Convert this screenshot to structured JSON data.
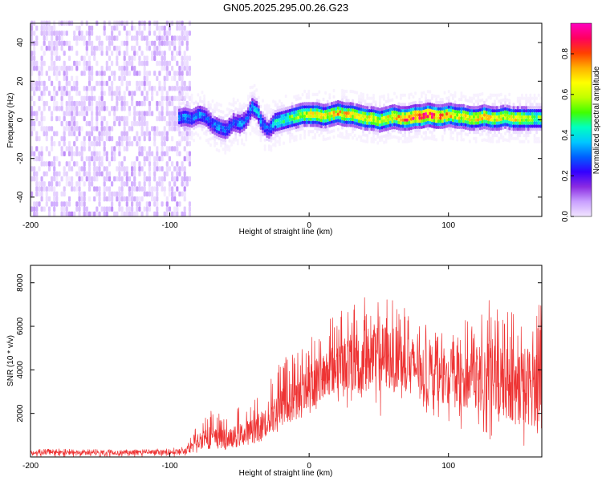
{
  "title": "GN05.2025.295.00.26.G23",
  "chart_data": [
    {
      "type": "heatmap",
      "name": "spectrogram",
      "xlabel": "Height of straight line (km)",
      "ylabel": "Frequency (Hz)",
      "xlim": [
        -200,
        167
      ],
      "ylim": [
        -50,
        50
      ],
      "xticks": [
        -200,
        -100,
        0,
        100
      ],
      "yticks": [
        -40,
        -20,
        0,
        20,
        40
      ],
      "xtick_labels": [
        "-200",
        "-100",
        "0",
        "100"
      ],
      "ytick_labels": [
        "-40",
        "-20",
        "0",
        "20",
        "40"
      ],
      "colorbar": {
        "label": "Normalized spectral amplitude",
        "range": [
          0.0,
          0.95
        ],
        "ticks": [
          0.0,
          0.2,
          0.4,
          0.6,
          0.8
        ],
        "tick_labels": [
          "0.0",
          "0.2",
          "0.4",
          "0.6",
          "0.8"
        ],
        "colors": [
          "#f2e6ff",
          "#c9a0ff",
          "#8a2be2",
          "#3300ff",
          "#0060ff",
          "#00c8ff",
          "#00ffc0",
          "#40ff00",
          "#c0ff00",
          "#ffff00",
          "#ffb000",
          "#ff4000",
          "#ff0060",
          "#ff00c0"
        ]
      },
      "noise_region": {
        "x_range": [
          -200,
          -88
        ],
        "typical_amplitude": 0.05
      },
      "signal_track": {
        "description": "Doppler frequency centroid of the main signal",
        "x": [
          -95,
          -90,
          -85,
          -80,
          -75,
          -70,
          -65,
          -60,
          -55,
          -50,
          -45,
          -42,
          -38,
          -35,
          -30,
          -25,
          -20,
          -15,
          -10,
          -5,
          0,
          5,
          10,
          15,
          20,
          25,
          30,
          35,
          40,
          45,
          50,
          55,
          60,
          65,
          70,
          75,
          80,
          85,
          90,
          95,
          100,
          105,
          110,
          115,
          120,
          125,
          130,
          135,
          140,
          145,
          150,
          155,
          160,
          165
        ],
        "frequency": [
          0,
          1,
          0,
          2,
          1,
          -3,
          -5,
          -6,
          -2,
          -3,
          0,
          6,
          4,
          -2,
          -6,
          -2,
          -1,
          0,
          1,
          2,
          2,
          2,
          1,
          2,
          3,
          2,
          2,
          1,
          0,
          0,
          -1,
          0,
          1,
          0,
          0,
          1,
          1,
          2,
          1,
          1,
          2,
          1,
          1,
          0,
          0,
          1,
          0,
          0,
          1,
          0,
          0,
          0,
          0,
          0
        ],
        "amplitude": [
          0.3,
          0.35,
          0.3,
          0.35,
          0.3,
          0.3,
          0.35,
          0.3,
          0.3,
          0.35,
          0.3,
          0.35,
          0.4,
          0.35,
          0.3,
          0.45,
          0.5,
          0.55,
          0.6,
          0.65,
          0.7,
          0.7,
          0.7,
          0.7,
          0.75,
          0.75,
          0.7,
          0.7,
          0.7,
          0.7,
          0.65,
          0.7,
          0.75,
          0.8,
          0.85,
          0.9,
          0.9,
          0.9,
          0.85,
          0.8,
          0.75,
          0.7,
          0.7,
          0.7,
          0.7,
          0.75,
          0.7,
          0.7,
          0.65,
          0.7,
          0.7,
          0.65,
          0.6,
          0.55
        ]
      }
    },
    {
      "type": "line",
      "name": "snr",
      "xlabel": "Height of straight line (km)",
      "ylabel": "SNR (10 * v/v)",
      "xlim": [
        -200,
        167
      ],
      "ylim": [
        0,
        8800
      ],
      "xticks": [
        -200,
        -100,
        0,
        100
      ],
      "yticks": [
        2000,
        4000,
        6000,
        8000
      ],
      "xtick_labels": [
        "-200",
        "-100",
        "0",
        "100"
      ],
      "ytick_labels": [
        "2000",
        "4000",
        "6000",
        "8000"
      ],
      "color": "#ee3333",
      "series": [
        {
          "name": "SNR",
          "envelope_x": [
            -200,
            -180,
            -160,
            -140,
            -120,
            -100,
            -90,
            -85,
            -80,
            -75,
            -70,
            -65,
            -60,
            -55,
            -50,
            -45,
            -40,
            -35,
            -30,
            -25,
            -20,
            -15,
            -10,
            -5,
            0,
            5,
            10,
            15,
            20,
            25,
            30,
            35,
            40,
            45,
            50,
            55,
            60,
            65,
            70,
            75,
            80,
            85,
            90,
            95,
            100,
            105,
            110,
            115,
            120,
            125,
            130,
            135,
            140,
            145,
            150,
            155,
            160,
            165
          ],
          "envelope_low": [
            0,
            0,
            0,
            0,
            0,
            0,
            0,
            100,
            200,
            300,
            300,
            400,
            300,
            400,
            400,
            500,
            600,
            700,
            800,
            1000,
            1200,
            1300,
            1500,
            1600,
            1800,
            2000,
            2200,
            2300,
            2400,
            2300,
            2200,
            2000,
            2000,
            1800,
            1600,
            1700,
            1800,
            1900,
            2000,
            2000,
            2100,
            2000,
            1900,
            1800,
            1600,
            1400,
            1200,
            1000,
            900,
            800,
            700,
            600,
            500,
            400,
            300,
            300,
            200,
            200
          ],
          "envelope_mid": [
            200,
            200,
            200,
            200,
            200,
            220,
            250,
            400,
            700,
            900,
            900,
            800,
            800,
            900,
            1000,
            1100,
            1200,
            1400,
            1700,
            2000,
            2300,
            2400,
            2600,
            2800,
            3200,
            3500,
            3800,
            4000,
            4200,
            4300,
            4300,
            4400,
            4500,
            4500,
            4600,
            4600,
            4500,
            4500,
            4400,
            4200,
            4000,
            3800,
            3700,
            3600,
            3500,
            3500,
            3500,
            3600,
            3700,
            3700,
            3700,
            3600,
            3500,
            3400,
            3300,
            3300,
            3300,
            3200
          ],
          "envelope_high": [
            350,
            380,
            350,
            360,
            350,
            400,
            500,
            900,
            1600,
            2100,
            2200,
            2000,
            2000,
            2100,
            2300,
            2500,
            2700,
            3200,
            3700,
            4200,
            4600,
            4800,
            4900,
            5200,
            5600,
            6000,
            6200,
            6500,
            6600,
            6800,
            7000,
            7200,
            7400,
            7500,
            7400,
            7300,
            7200,
            7100,
            6900,
            6600,
            6300,
            6000,
            5800,
            5700,
            5700,
            5900,
            6200,
            6500,
            6700,
            7000,
            7300,
            7000,
            6900,
            6800,
            6600,
            6800,
            7000,
            7200
          ]
        }
      ]
    }
  ]
}
